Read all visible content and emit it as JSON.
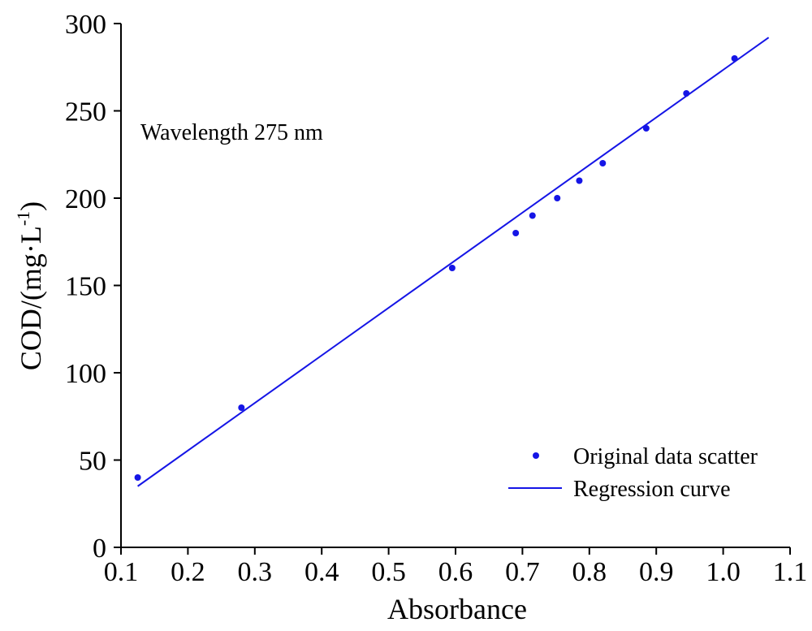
{
  "chart_data": {
    "type": "scatter",
    "xlabel": "Absorbance",
    "ylabel_main": "COD/(mg·L",
    "ylabel_sup": "-1",
    "ylabel_close": ")",
    "annotation": "Wavelength 275 nm",
    "xlim": [
      0.1,
      1.1
    ],
    "ylim": [
      0,
      300
    ],
    "xticks": [
      "0.1",
      "0.2",
      "0.3",
      "0.4",
      "0.5",
      "0.6",
      "0.7",
      "0.8",
      "0.9",
      "1.0",
      "1.1"
    ],
    "yticks": [
      "0",
      "50",
      "100",
      "150",
      "200",
      "250",
      "300"
    ],
    "colors": {
      "series": "#1515e6",
      "axis": "#000000"
    },
    "legend_position": "bottom-right",
    "series": [
      {
        "name": "Original data scatter",
        "kind": "scatter",
        "x": [
          0.125,
          0.28,
          0.595,
          0.69,
          0.715,
          0.752,
          0.785,
          0.82,
          0.885,
          0.945,
          1.017
        ],
        "y": [
          40,
          80,
          160,
          180,
          190,
          200,
          210,
          220,
          240,
          260,
          280
        ]
      },
      {
        "name": "Regression curve",
        "kind": "line",
        "x": [
          0.125,
          1.068
        ],
        "y": [
          35,
          292
        ]
      }
    ]
  }
}
